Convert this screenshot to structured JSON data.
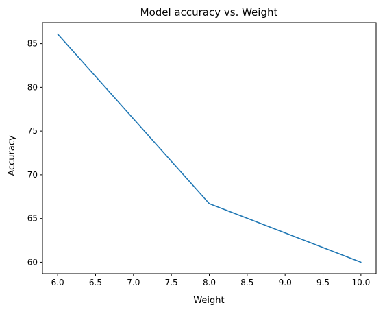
{
  "chart_data": {
    "type": "line",
    "title": "Model accuracy vs. Weight",
    "xlabel": "Weight",
    "ylabel": "Accuracy",
    "xlim": [
      5.8,
      10.2
    ],
    "ylim": [
      58.7,
      87.4
    ],
    "xticks": [
      6.0,
      6.5,
      7.0,
      7.5,
      8.0,
      8.5,
      9.0,
      9.5,
      10.0
    ],
    "xtick_labels": [
      "6.0",
      "6.5",
      "7.0",
      "7.5",
      "8.0",
      "8.5",
      "9.0",
      "9.5",
      "10.0"
    ],
    "yticks": [
      60,
      65,
      70,
      75,
      80,
      85
    ],
    "ytick_labels": [
      "60",
      "65",
      "70",
      "75",
      "80",
      "85"
    ],
    "grid": false,
    "series": [
      {
        "color": "#1f77b4",
        "x": [
          6.0,
          8.0,
          10.0
        ],
        "y": [
          86.1,
          66.7,
          60.0
        ]
      }
    ]
  }
}
